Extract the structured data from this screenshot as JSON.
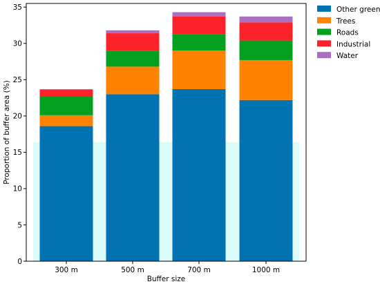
{
  "chart_data": {
    "type": "bar",
    "stacked": true,
    "title": "",
    "xlabel": "Buffer size",
    "ylabel": "Proportion of buffer area (%)",
    "categories": [
      "300 m",
      "500 m",
      "700 m",
      "1000 m"
    ],
    "ylim": [
      0,
      35.5
    ],
    "yticks": [
      0,
      5,
      10,
      15,
      20,
      25,
      30,
      35
    ],
    "grid": false,
    "legend_position": "top-right (outside plot)",
    "series": [
      {
        "name": "Other green",
        "color": "#0173b2",
        "values": [
          18.6,
          23.0,
          23.7,
          22.2
        ]
      },
      {
        "name": "Trees",
        "color": "#ff8200",
        "values": [
          1.5,
          3.8,
          5.3,
          5.5
        ]
      },
      {
        "name": "Roads",
        "color": "#03a01f",
        "values": [
          2.6,
          2.2,
          2.3,
          2.7
        ]
      },
      {
        "name": "Industrial",
        "color": "#fb222a",
        "values": [
          0.9,
          2.4,
          2.4,
          2.5
        ]
      },
      {
        "name": "Water",
        "color": "#a970bf",
        "values": [
          0.1,
          0.4,
          0.6,
          0.8
        ]
      }
    ],
    "background_band": {
      "color": "#dcfbfb",
      "y_top": 16.4
    }
  }
}
